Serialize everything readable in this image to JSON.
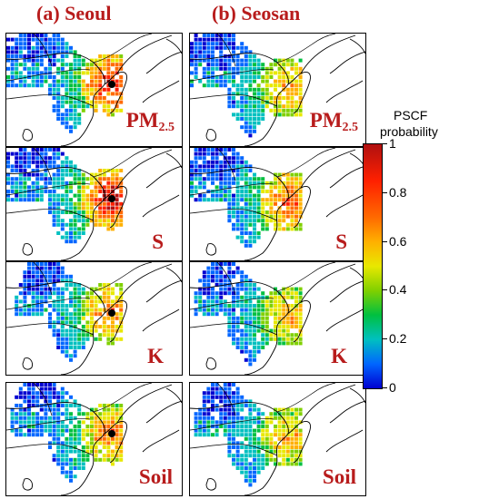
{
  "column_titles": [
    "(a) Seoul",
    "(b) Seosan"
  ],
  "colorbar": {
    "title_line1": "PSCF",
    "title_line2": "probability",
    "tick_labels": [
      "1",
      "0.8",
      "0.6",
      "0.4",
      "0.2",
      "0"
    ],
    "tick_values": [
      1,
      0.8,
      0.6,
      0.4,
      0.2,
      0
    ]
  },
  "rows": [
    {
      "species": "PM",
      "subscript": "2.5"
    },
    {
      "species": "S",
      "subscript": ""
    },
    {
      "species": "K",
      "subscript": ""
    },
    {
      "species": "Soil",
      "subscript": ""
    }
  ],
  "panels": [
    {
      "site": "Seoul",
      "species": "PM2.5",
      "col": 0,
      "row": 0,
      "marker": true,
      "intensity": 0.95,
      "reach": 1.0
    },
    {
      "site": "Seosan",
      "species": "PM2.5",
      "col": 1,
      "row": 0,
      "marker": false,
      "intensity": 0.75,
      "reach": 0.95
    },
    {
      "site": "Seoul",
      "species": "S",
      "col": 0,
      "row": 1,
      "marker": true,
      "intensity": 1.0,
      "reach": 1.0
    },
    {
      "site": "Seosan",
      "species": "S",
      "col": 1,
      "row": 1,
      "marker": false,
      "intensity": 0.85,
      "reach": 0.95
    },
    {
      "site": "Seoul",
      "species": "K",
      "col": 0,
      "row": 2,
      "marker": true,
      "intensity": 0.8,
      "reach": 0.85
    },
    {
      "site": "Seosan",
      "species": "K",
      "col": 1,
      "row": 2,
      "marker": false,
      "intensity": 0.7,
      "reach": 0.85
    },
    {
      "site": "Seoul",
      "species": "Soil",
      "col": 0,
      "row": 3,
      "marker": true,
      "intensity": 0.8,
      "reach": 0.9
    },
    {
      "site": "Seosan",
      "species": "Soil",
      "col": 1,
      "row": 3,
      "marker": false,
      "intensity": 0.7,
      "reach": 0.85
    }
  ],
  "colors": {
    "title": "#b81c1c",
    "land_outline": "#000000",
    "colormap": [
      "#0000d0",
      "#0066ff",
      "#00c0c0",
      "#00c040",
      "#80d000",
      "#e8e800",
      "#ffb000",
      "#ff6a00",
      "#ff2000",
      "#b01010"
    ]
  }
}
